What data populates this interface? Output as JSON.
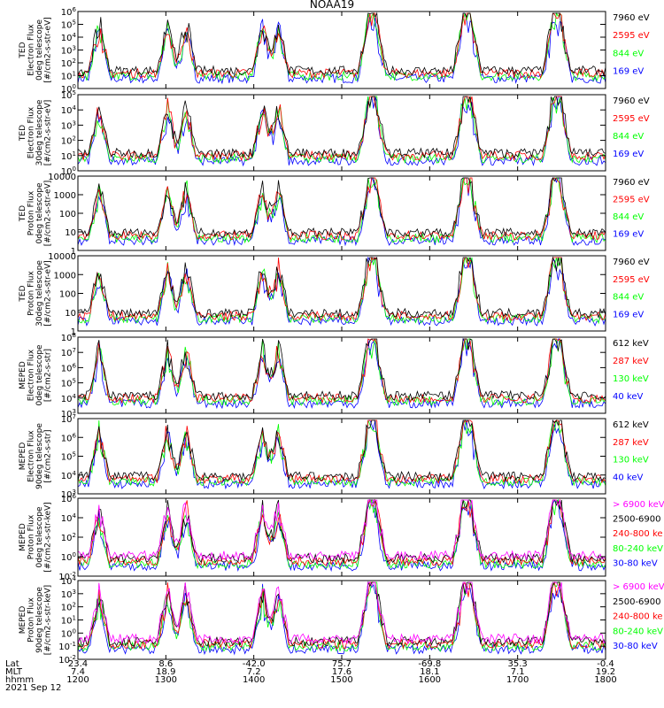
{
  "title": "NOAA19",
  "colors": {
    "blue": "#0000ff",
    "red": "#ff0000",
    "green": "#00ff00",
    "black": "#000000",
    "magenta": "#ff00ff"
  },
  "chart_data": [
    {
      "type": "line",
      "ylabel": [
        "TED",
        "Electron Flux",
        "0deg telescope",
        "[#/cm2-s-str-eV]"
      ],
      "ytick_labels": [
        "10^0",
        "10^1",
        "10^2",
        "10^3",
        "10^4",
        "10^5",
        "10^6"
      ],
      "legend": [
        {
          "label": "7960 eV",
          "color": "black"
        },
        {
          "label": "2595 eV",
          "color": "red"
        },
        {
          "label": "844 eV",
          "color": "green"
        },
        {
          "label": "169 eV",
          "color": "blue"
        }
      ]
    },
    {
      "type": "line",
      "ylabel": [
        "TED",
        "Electron Flux",
        "30deg telescope",
        "[#/cm2-s-str-eV]"
      ],
      "ytick_labels": [
        "10^0",
        "10^1",
        "10^2",
        "10^3",
        "10^4",
        "10^5"
      ],
      "legend": [
        {
          "label": "7960 eV",
          "color": "black"
        },
        {
          "label": "2595 eV",
          "color": "red"
        },
        {
          "label": "844 eV",
          "color": "green"
        },
        {
          "label": "169 eV",
          "color": "blue"
        }
      ]
    },
    {
      "type": "line",
      "ylabel": [
        "TED",
        "Proton Flux",
        "0deg telescope",
        "[#/cm2-s-str-eV]"
      ],
      "ytick_labels": [
        "1",
        "10",
        "100",
        "1000",
        "10000"
      ],
      "legend": [
        {
          "label": "7960 eV",
          "color": "black"
        },
        {
          "label": "2595 eV",
          "color": "red"
        },
        {
          "label": "844 eV",
          "color": "green"
        },
        {
          "label": "169 eV",
          "color": "blue"
        }
      ]
    },
    {
      "type": "line",
      "ylabel": [
        "TED",
        "Proton Flux",
        "30deg telescope",
        "[#/cm2-s-str-eV]"
      ],
      "ytick_labels": [
        "1",
        "10",
        "100",
        "1000",
        "10000"
      ],
      "legend": [
        {
          "label": "7960 eV",
          "color": "black"
        },
        {
          "label": "2595 eV",
          "color": "red"
        },
        {
          "label": "844 eV",
          "color": "green"
        },
        {
          "label": "169 eV",
          "color": "blue"
        }
      ]
    },
    {
      "type": "line",
      "ylabel": [
        "MEPED",
        "Electron Flux",
        "0deg telescope",
        "[#/cm2-s-str]"
      ],
      "ytick_labels": [
        "10^3",
        "10^4",
        "10^5",
        "10^6",
        "10^7",
        "10^8"
      ],
      "legend": [
        {
          "label": "612 keV",
          "color": "black"
        },
        {
          "label": "287 keV",
          "color": "red"
        },
        {
          "label": "130 keV",
          "color": "green"
        },
        {
          "label": "40 keV",
          "color": "blue"
        }
      ]
    },
    {
      "type": "line",
      "ylabel": [
        "MEPED",
        "Electron Flux",
        "90deg telescope",
        "[#/cm2-s-str]"
      ],
      "ytick_labels": [
        "10^3",
        "10^4",
        "10^5",
        "10^6",
        "10^7"
      ],
      "legend": [
        {
          "label": "612 keV",
          "color": "black"
        },
        {
          "label": "287 keV",
          "color": "red"
        },
        {
          "label": "130 keV",
          "color": "green"
        },
        {
          "label": "40 keV",
          "color": "blue"
        }
      ]
    },
    {
      "type": "line",
      "ylabel": [
        "MEPED",
        "Proton Flux",
        "0deg telescope",
        "[#/cm2-s-str-keV]"
      ],
      "ytick_labels": [
        "10^-2",
        "10^0",
        "10^2",
        "10^4",
        "10^6"
      ],
      "legend": [
        {
          "label": "> 6900 keV",
          "color": "magenta"
        },
        {
          "label": "2500-6900",
          "color": "black"
        },
        {
          "label": "240-800 ke",
          "color": "red"
        },
        {
          "label": "80-240 keV",
          "color": "green"
        },
        {
          "label": "30-80 keV",
          "color": "blue"
        }
      ]
    },
    {
      "type": "line",
      "ylabel": [
        "MEPED",
        "Proton Flux",
        "90deg telescope",
        "[#/cm2-s-str-keV]"
      ],
      "ytick_labels": [
        "10^-2",
        "10^-1",
        "10^0",
        "10^1",
        "10^2",
        "10^3",
        "10^4"
      ],
      "legend": [
        {
          "label": "> 6900 keV",
          "color": "magenta"
        },
        {
          "label": "2500-6900",
          "color": "black"
        },
        {
          "label": "240-800 ke",
          "color": "red"
        },
        {
          "label": "80-240 keV",
          "color": "green"
        },
        {
          "label": "30-80 keV",
          "color": "blue"
        }
      ]
    }
  ],
  "x_axis": {
    "row_labels": [
      "Lat",
      "MLT",
      "hhmm",
      "2021 Sep 12"
    ],
    "columns": [
      {
        "lat": "23.4",
        "mlt": "7.4",
        "hhmm": "1200"
      },
      {
        "lat": "8.6",
        "mlt": "18.9",
        "hhmm": "1300"
      },
      {
        "lat": "-42.0",
        "mlt": "7.2",
        "hhmm": "1400"
      },
      {
        "lat": "75.7",
        "mlt": "17.6",
        "hhmm": "1500"
      },
      {
        "lat": "-69.8",
        "mlt": "18.1",
        "hhmm": "1600"
      },
      {
        "lat": "35.3",
        "mlt": "7.1",
        "hhmm": "1700"
      },
      {
        "lat": "-0.4",
        "mlt": "19.2",
        "hhmm": "1800"
      }
    ]
  }
}
